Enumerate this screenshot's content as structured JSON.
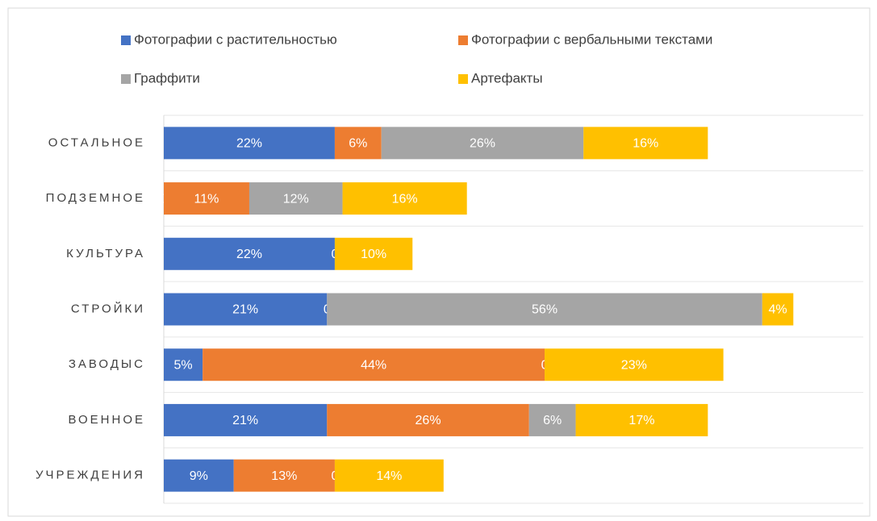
{
  "chart_data": {
    "type": "stacked-bar-horizontal",
    "categories": [
      "ОСТАЛЬНОЕ",
      "ПОДЗЕМНОЕ",
      "КУЛЬТУРА",
      "СТРОЙКИ",
      "ЗАВОДЫС",
      "ВОЕННОЕ",
      "УЧРЕЖДЕНИЯ"
    ],
    "xlim": [
      0,
      90
    ],
    "series": [
      {
        "name": "Фотографии с растительностью",
        "color": "#4472c4",
        "values": [
          22,
          0,
          22,
          21,
          5,
          21,
          9
        ],
        "value_labels": [
          "22%",
          "0",
          "22%",
          "21%",
          "5%",
          "21%",
          "9%"
        ]
      },
      {
        "name": "Фотографии с вербальными текстами",
        "color": "#ed7d31",
        "values": [
          6,
          11,
          0,
          0,
          44,
          26,
          13
        ],
        "value_labels": [
          "6%",
          "11%",
          "0",
          "0",
          "44%",
          "26%",
          "13%"
        ]
      },
      {
        "name": "Граффити",
        "color": "#a5a5a5",
        "values": [
          26,
          12,
          null,
          56,
          0,
          6,
          0
        ],
        "value_labels": [
          "26%",
          "12%",
          null,
          "56%",
          "0",
          "6%",
          "0"
        ]
      },
      {
        "name": "Артефакты",
        "color": "#ffc000",
        "values": [
          16,
          16,
          10,
          4,
          23,
          17,
          14
        ],
        "value_labels": [
          "16%",
          "16%",
          "10%",
          "4%",
          "23%",
          "17%",
          "14%"
        ]
      }
    ]
  }
}
